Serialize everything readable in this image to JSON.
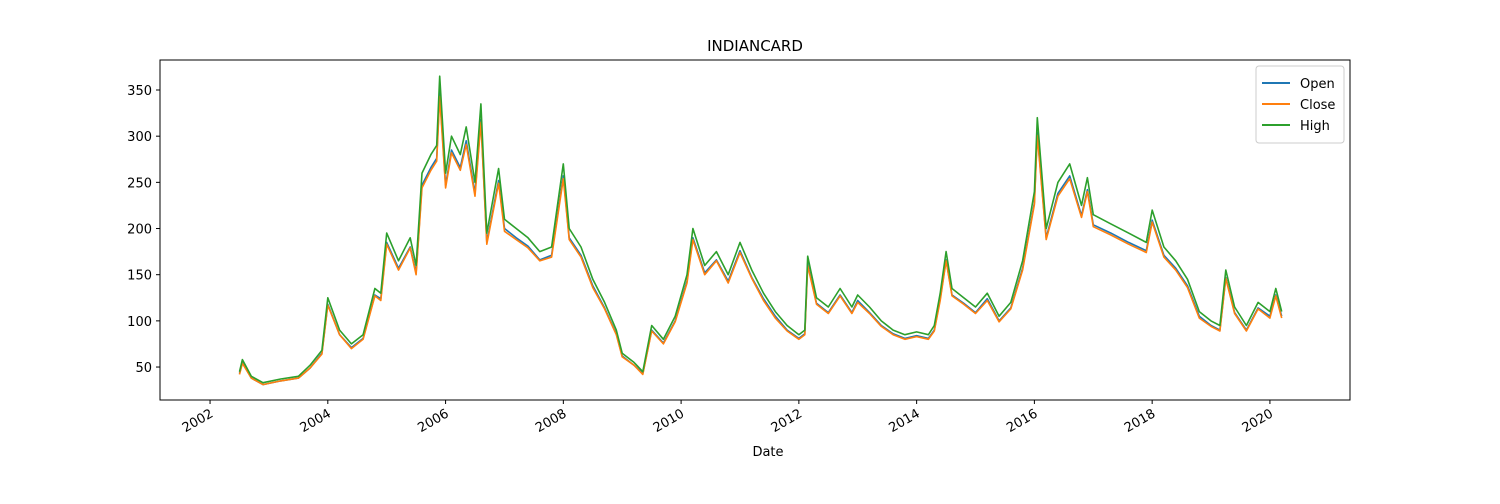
{
  "chart_data": {
    "type": "line",
    "title": "INDIANCARD",
    "x_label": "Date",
    "x": [
      2002.5,
      2002.55,
      2002.7,
      2002.9,
      2003.2,
      2003.5,
      2003.7,
      2003.9,
      2004.0,
      2004.2,
      2004.4,
      2004.6,
      2004.8,
      2004.9,
      2005.0,
      2005.2,
      2005.4,
      2005.5,
      2005.6,
      2005.75,
      2005.85,
      2005.9,
      2006.0,
      2006.1,
      2006.25,
      2006.35,
      2006.5,
      2006.6,
      2006.7,
      2006.9,
      2007.0,
      2007.2,
      2007.4,
      2007.6,
      2007.8,
      2008.0,
      2008.1,
      2008.3,
      2008.5,
      2008.7,
      2008.9,
      2009.0,
      2009.2,
      2009.35,
      2009.5,
      2009.7,
      2009.9,
      2010.1,
      2010.2,
      2010.4,
      2010.6,
      2010.8,
      2011.0,
      2011.2,
      2011.4,
      2011.6,
      2011.8,
      2012.0,
      2012.1,
      2012.15,
      2012.3,
      2012.5,
      2012.7,
      2012.9,
      2013.0,
      2013.2,
      2013.4,
      2013.6,
      2013.8,
      2014.0,
      2014.2,
      2014.3,
      2014.4,
      2014.5,
      2014.6,
      2014.8,
      2015.0,
      2015.2,
      2015.4,
      2015.6,
      2015.8,
      2016.0,
      2016.05,
      2016.2,
      2016.4,
      2016.6,
      2016.8,
      2016.9,
      2017.0,
      2017.3,
      2017.6,
      2017.9,
      2018.0,
      2018.2,
      2018.4,
      2018.6,
      2018.8,
      2019.0,
      2019.15,
      2019.25,
      2019.4,
      2019.6,
      2019.8,
      2020.0,
      2020.1,
      2020.2
    ],
    "series": [
      {
        "name": "Open",
        "color": "#1f77b4",
        "values": [
          43,
          55,
          38,
          31,
          35,
          38,
          49,
          65,
          118,
          85,
          71,
          81,
          128,
          124,
          185,
          157,
          180,
          152,
          247,
          266,
          276,
          347,
          247,
          285,
          266,
          295,
          238,
          318,
          185,
          252,
          200,
          190,
          181,
          166,
          171,
          257,
          190,
          171,
          138,
          114,
          86,
          62,
          52,
          43,
          90,
          76,
          100,
          143,
          190,
          152,
          166,
          143,
          176,
          147,
          124,
          105,
          90,
          81,
          86,
          162,
          119,
          109,
          128,
          109,
          122,
          109,
          95,
          86,
          81,
          84,
          81,
          90,
          124,
          166,
          128,
          119,
          109,
          124,
          100,
          114,
          157,
          228,
          304,
          190,
          238,
          257,
          214,
          242,
          204,
          195,
          185,
          176,
          209,
          171,
          157,
          138,
          105,
          95,
          90,
          147,
          109,
          90,
          114,
          105,
          128,
          105
        ]
      },
      {
        "name": "Close",
        "color": "#ff7f0e",
        "values": [
          42,
          54,
          38,
          31,
          35,
          38,
          49,
          64,
          117,
          85,
          70,
          80,
          127,
          122,
          183,
          155,
          179,
          150,
          244,
          263,
          273,
          343,
          244,
          282,
          263,
          291,
          235,
          315,
          183,
          249,
          197,
          188,
          179,
          165,
          169,
          254,
          188,
          169,
          136,
          113,
          85,
          61,
          52,
          42,
          89,
          75,
          99,
          141,
          188,
          150,
          165,
          141,
          174,
          146,
          122,
          103,
          89,
          80,
          85,
          160,
          118,
          108,
          127,
          108,
          120,
          108,
          94,
          85,
          80,
          83,
          80,
          89,
          122,
          165,
          127,
          118,
          108,
          122,
          99,
          113,
          155,
          226,
          301,
          188,
          235,
          254,
          212,
          240,
          202,
          193,
          183,
          174,
          207,
          169,
          155,
          136,
          103,
          94,
          89,
          146,
          108,
          89,
          113,
          103,
          127,
          103
        ]
      },
      {
        "name": "High",
        "color": "#2ca02c",
        "values": [
          45,
          58,
          40,
          33,
          37,
          40,
          52,
          68,
          125,
          90,
          75,
          85,
          135,
          130,
          195,
          165,
          190,
          160,
          260,
          280,
          290,
          365,
          260,
          300,
          280,
          310,
          250,
          335,
          195,
          265,
          210,
          200,
          190,
          175,
          180,
          270,
          200,
          180,
          145,
          120,
          90,
          65,
          55,
          45,
          95,
          80,
          105,
          150,
          200,
          160,
          175,
          150,
          185,
          155,
          130,
          110,
          95,
          85,
          90,
          170,
          125,
          115,
          135,
          115,
          128,
          115,
          100,
          90,
          85,
          88,
          85,
          95,
          130,
          175,
          135,
          125,
          115,
          130,
          105,
          120,
          165,
          240,
          320,
          200,
          250,
          270,
          225,
          255,
          215,
          205,
          195,
          185,
          220,
          180,
          165,
          145,
          110,
          100,
          95,
          155,
          115,
          95,
          120,
          110,
          135,
          110
        ]
      }
    ],
    "xlim": [
      2001.15,
      2021.36
    ],
    "xticks": [
      2002,
      2004,
      2006,
      2008,
      2010,
      2012,
      2014,
      2016,
      2018,
      2020
    ],
    "ylim": [
      14.3,
      382.5
    ],
    "yticks": [
      50,
      100,
      150,
      200,
      250,
      300,
      350
    ],
    "legend": "upper right"
  }
}
